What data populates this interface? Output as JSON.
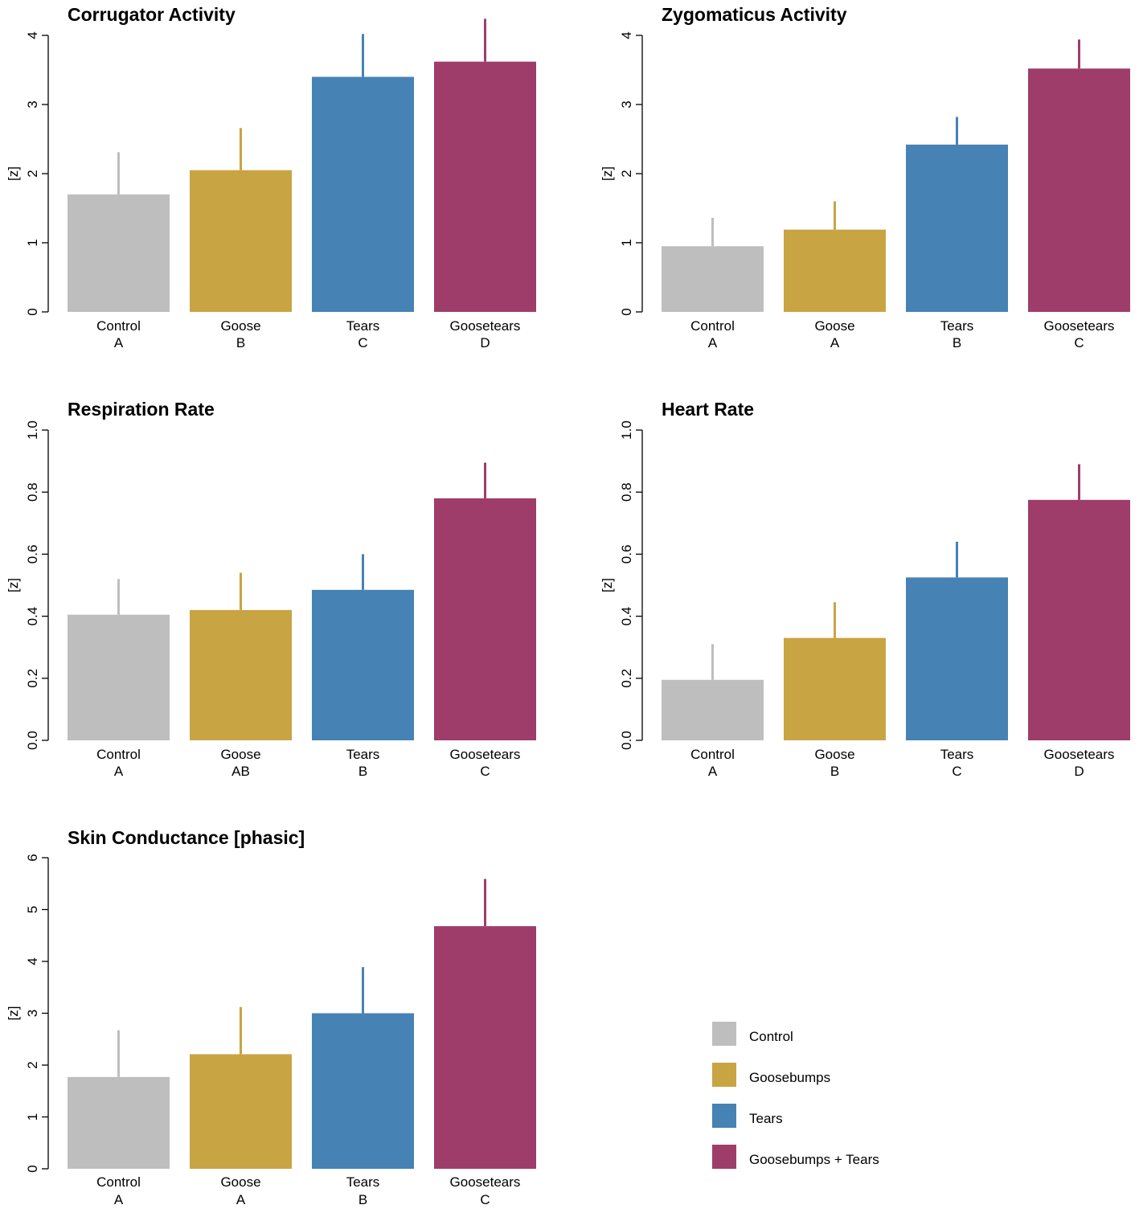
{
  "colors": {
    "control": "#bebebe",
    "goose": "#c8a442",
    "tears": "#4682b4",
    "goosetears": "#9e3d6a"
  },
  "legend": {
    "items": [
      {
        "label": "Control",
        "color": "#bebebe"
      },
      {
        "label": "Goosebumps",
        "color": "#c8a442"
      },
      {
        "label": "Tears",
        "color": "#4682b4"
      },
      {
        "label": "Goosebumps + Tears",
        "color": "#9e3d6a"
      }
    ]
  },
  "chart_data": [
    {
      "type": "bar",
      "title": "Corrugator Activity",
      "ylabel": "[z]",
      "ylim": [
        0,
        4
      ],
      "yticks": [
        "0",
        "1",
        "2",
        "3",
        "4"
      ],
      "categories": [
        "Control",
        "Goose",
        "Tears",
        "Goosetears"
      ],
      "groups": [
        "A",
        "B",
        "C",
        "D"
      ],
      "values": [
        1.7,
        2.05,
        3.4,
        3.62
      ],
      "error_upper": [
        2.31,
        2.66,
        4.02,
        4.24
      ]
    },
    {
      "type": "bar",
      "title": "Zygomaticus Activity",
      "ylabel": "[z]",
      "ylim": [
        0,
        4
      ],
      "yticks": [
        "0",
        "1",
        "2",
        "3",
        "4"
      ],
      "categories": [
        "Control",
        "Goose",
        "Tears",
        "Goosetears"
      ],
      "groups": [
        "A",
        "A",
        "B",
        "C"
      ],
      "values": [
        0.95,
        1.19,
        2.42,
        3.52
      ],
      "error_upper": [
        1.36,
        1.6,
        2.82,
        3.94
      ]
    },
    {
      "type": "bar",
      "title": "Respiration Rate",
      "ylabel": "[z]",
      "ylim": [
        0,
        1.0
      ],
      "yticks": [
        "0.0",
        "0.2",
        "0.4",
        "0.6",
        "0.8",
        "1.0"
      ],
      "categories": [
        "Control",
        "Goose",
        "Tears",
        "Goosetears"
      ],
      "groups": [
        "A",
        "AB",
        "B",
        "C"
      ],
      "values": [
        0.405,
        0.42,
        0.485,
        0.78
      ],
      "error_upper": [
        0.52,
        0.54,
        0.6,
        0.895
      ]
    },
    {
      "type": "bar",
      "title": "Heart Rate",
      "ylabel": "[z]",
      "ylim": [
        0,
        1.0
      ],
      "yticks": [
        "0.0",
        "0.2",
        "0.4",
        "0.6",
        "0.8",
        "1.0"
      ],
      "categories": [
        "Control",
        "Goose",
        "Tears",
        "Goosetears"
      ],
      "groups": [
        "A",
        "B",
        "C",
        "D"
      ],
      "values": [
        0.195,
        0.33,
        0.525,
        0.775
      ],
      "error_upper": [
        0.31,
        0.445,
        0.64,
        0.89
      ]
    },
    {
      "type": "bar",
      "title": "Skin Conductance [phasic]",
      "ylabel": "[z]",
      "ylim": [
        0,
        6
      ],
      "yticks": [
        "0",
        "1",
        "2",
        "3",
        "4",
        "5",
        "6"
      ],
      "categories": [
        "Control",
        "Goose",
        "Tears",
        "Goosetears"
      ],
      "groups": [
        "A",
        "A",
        "B",
        "C"
      ],
      "values": [
        1.77,
        2.21,
        3.0,
        4.68
      ],
      "error_upper": [
        2.67,
        3.12,
        3.89,
        5.59
      ]
    }
  ]
}
